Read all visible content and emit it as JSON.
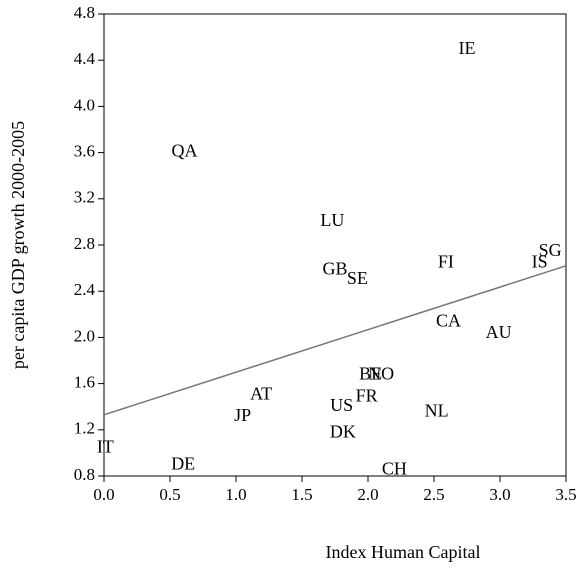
{
  "chart_data": {
    "type": "scatter",
    "x_label": "Index Human Capital",
    "y_label": "per capita GDP growth 2000-2005",
    "labels": [
      "IE",
      "QA",
      "LU",
      "GB",
      "SE",
      "FI",
      "IS",
      "SG",
      "CA",
      "AU",
      "BE",
      "NO",
      "FR",
      "AT",
      "US",
      "JP",
      "NL",
      "DK",
      "IT",
      "DE",
      "CH"
    ],
    "x": [
      2.75,
      0.61,
      1.73,
      1.75,
      1.92,
      2.59,
      3.3,
      3.38,
      2.61,
      2.99,
      2.02,
      2.1,
      1.99,
      1.19,
      1.8,
      1.05,
      2.52,
      1.81,
      0.01,
      0.6,
      2.2
    ],
    "y": [
      4.49,
      3.6,
      3.0,
      2.58,
      2.5,
      2.64,
      2.64,
      2.74,
      2.13,
      2.03,
      1.67,
      1.67,
      1.48,
      1.5,
      1.4,
      1.31,
      1.35,
      1.17,
      1.04,
      0.89,
      0.85
    ],
    "trend_line": {
      "x": [
        0,
        3.5
      ],
      "y": [
        1.33,
        2.62
      ],
      "color": "#777777"
    },
    "xlim": [
      0,
      3.5
    ],
    "ylim": [
      0.8,
      4.8
    ],
    "xticks": [
      {
        "value": 0,
        "label": "0.0"
      },
      0.5,
      {
        "value": 1,
        "label": "1.0"
      },
      1.5,
      {
        "value": 2,
        "label": "2.0"
      },
      2.5,
      {
        "value": 3,
        "label": "3.0"
      },
      3.5
    ],
    "yticks": [
      0.8,
      1.2,
      1.6,
      {
        "value": 2,
        "label": "2.0"
      },
      2.4,
      2.8,
      3.2,
      3.6,
      {
        "value": 4,
        "label": "4.0"
      },
      4.4,
      4.8
    ]
  }
}
